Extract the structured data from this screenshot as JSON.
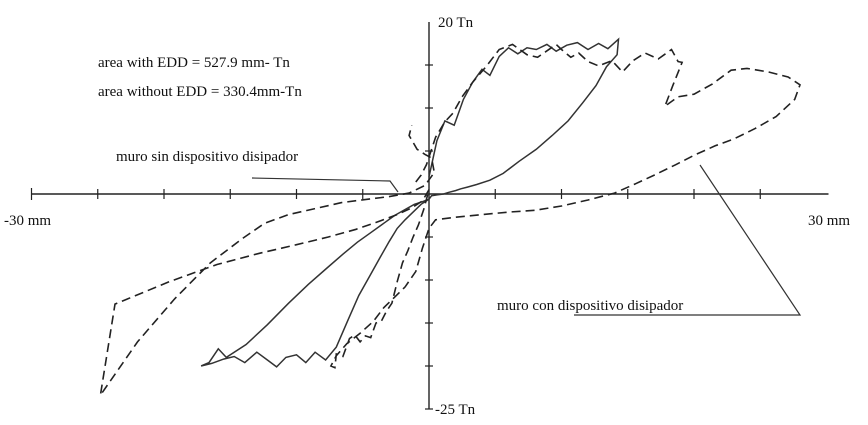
{
  "chart_data": {
    "type": "line",
    "title": "",
    "xlabel": "",
    "ylabel": "",
    "xlim": [
      -30,
      30
    ],
    "ylim": [
      -25,
      20
    ],
    "x_ticks": [
      -25,
      -20,
      -15,
      -10,
      -5,
      5,
      10,
      15,
      20,
      25
    ],
    "y_ticks": [
      -20,
      -15,
      -10,
      -5,
      5,
      10,
      15
    ],
    "grid": false,
    "axis_labels": {
      "x_min": "-30 mm",
      "x_max": "30 mm",
      "y_max": "20 Tn",
      "y_min": "-25 Tn"
    },
    "annotations": [
      "area with EDD = 527.9 mm- Tn",
      "area without EDD = 330.4mm-Tn",
      "muro sin dispositivo disipador",
      "muro con dispositivo disipador"
    ],
    "series": [
      {
        "name": "muro sin dispositivo disipador",
        "style": "solid",
        "color": "#333333",
        "x": [
          0,
          0.6,
          1.2,
          1.9,
          2.6,
          3.3,
          4.0,
          4.6,
          5.3,
          6.0,
          6.7,
          7.4,
          8.1,
          8.9,
          9.6,
          10.4,
          11.2,
          12.0,
          12.8,
          13.5,
          14.3,
          14.2,
          13.4,
          12.6,
          11.6,
          10.5,
          9.3,
          8.1,
          6.8,
          5.6,
          4.6,
          3.6,
          2.9,
          2.4,
          2.0,
          1.5,
          1.1,
          0.6,
          0.2,
          0,
          -0.5,
          -1.1,
          -1.8,
          -2.6,
          -3.4,
          -4.4,
          -5.4,
          -6.5,
          -7.7,
          -9.1,
          -10.6,
          -12.2,
          -13.8,
          -15.3,
          -15.9,
          -16.6,
          -17.2,
          -16.4,
          -15.5,
          -14.7,
          -13.9,
          -13.0,
          -12.2,
          -11.5,
          -10.8,
          -10.0,
          -9.3,
          -8.6,
          -7.8,
          -7.0,
          -6.1,
          -5.3,
          -4.5,
          -3.7,
          -3.0,
          -2.4,
          -1.8,
          -1.2,
          -0.6,
          0
        ],
        "y": [
          2.0,
          6.2,
          8.5,
          8.0,
          11.0,
          13.0,
          14.5,
          13.8,
          16.0,
          17.0,
          16.3,
          17.0,
          16.8,
          17.4,
          16.6,
          17.3,
          17.6,
          16.8,
          17.5,
          16.9,
          18.0,
          16.2,
          14.8,
          12.6,
          10.6,
          8.5,
          6.8,
          5.2,
          3.8,
          2.4,
          1.6,
          1.1,
          0.8,
          0.6,
          0.4,
          0.2,
          0,
          -0.1,
          -0.2,
          -0.6,
          -0.9,
          -1.2,
          -1.8,
          -2.5,
          -3.4,
          -4.5,
          -5.6,
          -7.0,
          -8.6,
          -10.5,
          -12.7,
          -15.2,
          -17.5,
          -19.0,
          -18.0,
          -19.6,
          -20.0,
          -19.7,
          -19.2,
          -18.9,
          -19.6,
          -18.4,
          -19.3,
          -20.1,
          -19.0,
          -18.7,
          -19.6,
          -18.4,
          -19.3,
          -17.8,
          -14.6,
          -11.8,
          -9.6,
          -7.4,
          -5.5,
          -4.0,
          -3.0,
          -2.1,
          -1.2,
          -0.6
        ]
      },
      {
        "name": "muro con dispositivo disipador",
        "style": "dashed",
        "color": "#222222",
        "x": [
          -1.0,
          -0.6,
          -0.2,
          0.5,
          1.2,
          1.8,
          2.5,
          3.3,
          4.3,
          5.3,
          6.3,
          7.4,
          8.2,
          9.6,
          10.0,
          10.7,
          11.3,
          12.0,
          12.8,
          13.8,
          14.6,
          15.4,
          16.3,
          17.3,
          18.3,
          18.8,
          19.1,
          18.4,
          17.8,
          18.8,
          20.0,
          21.4,
          22.8,
          24.0,
          25.6,
          27.1,
          28.0,
          27.6,
          26.2,
          24.6,
          23.0,
          21.6,
          20.0,
          18.6,
          17.0,
          15.6,
          14.0,
          12.0,
          10.0,
          8.0,
          6.0,
          4.0,
          2.0,
          0.5,
          0,
          -0.5,
          -1.0,
          -1.8,
          -2.6,
          -3.4,
          -4.2,
          -5.2,
          -6.2,
          -7.0,
          -7.4,
          -7.1,
          -7.0,
          -6.5,
          -6.0,
          -5.6,
          -5.2,
          -4.8,
          -4.4,
          -4.0,
          -3.6,
          -3.2,
          -2.8,
          -2.4,
          -2.0,
          -1.6,
          -1.2,
          -0.8,
          -0.4,
          0,
          -0.5,
          -1.3,
          -2.4,
          -3.8,
          -5.5,
          -7.6,
          -10.0,
          -12.8,
          -16.0,
          -19.6,
          -23.7,
          -24.8,
          -22.0,
          -19.2,
          -16.5,
          -14.1,
          -12.4,
          -10.6,
          -8.6,
          -6.6,
          -4.6,
          -3.0,
          -1.5,
          -0.3,
          0.4,
          0.2,
          -0.3,
          -0.9,
          -1.5,
          -1.3
        ],
        "y": [
          1.4,
          2.2,
          3.4,
          6.6,
          8.4,
          9.4,
          11.3,
          13.0,
          14.8,
          16.8,
          17.4,
          16.2,
          15.9,
          17.4,
          16.8,
          15.9,
          16.4,
          15.4,
          14.9,
          15.5,
          14.2,
          15.5,
          16.4,
          15.7,
          16.8,
          15.4,
          15.3,
          12.6,
          10.2,
          11.3,
          11.6,
          12.8,
          14.4,
          14.6,
          14.2,
          13.6,
          12.7,
          11.0,
          9.0,
          7.6,
          6.4,
          5.6,
          4.5,
          3.4,
          2.2,
          1.2,
          0.1,
          -0.7,
          -1.4,
          -1.9,
          -2.1,
          -2.4,
          -2.7,
          -3.0,
          -4.0,
          -6.3,
          -9.0,
          -10.8,
          -12.0,
          -13.2,
          -14.8,
          -16.2,
          -17.4,
          -18.8,
          -20.0,
          -20.2,
          -18.6,
          -18.9,
          -16.8,
          -16.4,
          -17.2,
          -16.5,
          -16.7,
          -15.0,
          -14.8,
          -13.6,
          -12.7,
          -10.2,
          -8.0,
          -6.6,
          -5.0,
          -3.6,
          -1.8,
          0.5,
          -0.8,
          -1.6,
          -2.4,
          -3.2,
          -4.1,
          -5.0,
          -5.9,
          -6.9,
          -8.2,
          -10.2,
          -12.8,
          -23.4,
          -17.2,
          -12.2,
          -8.0,
          -5.2,
          -3.4,
          -2.4,
          -1.7,
          -1.0,
          -0.6,
          -0.3,
          0.1,
          1.0,
          2.5,
          4.2,
          4.6,
          5.2,
          6.8,
          8.0
        ]
      }
    ]
  }
}
